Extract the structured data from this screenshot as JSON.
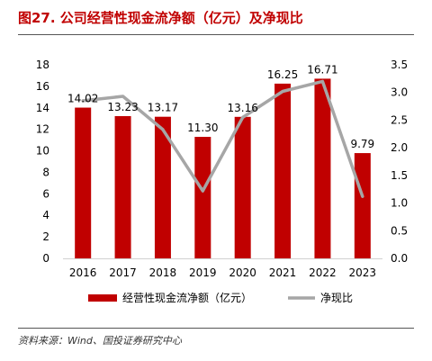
{
  "figure": {
    "title": "图27. 公司经营性现金流净额（亿元）及净现比",
    "source": "资料来源：Wind、国投证券研究中心"
  },
  "chart_data": {
    "type": "bar",
    "categories": [
      "2016",
      "2017",
      "2018",
      "2019",
      "2020",
      "2021",
      "2022",
      "2023"
    ],
    "series": [
      {
        "name": "经营性现金流净额（亿元）",
        "type": "bar",
        "axis": "left",
        "color": "#c00000",
        "values": [
          14.02,
          13.23,
          13.17,
          11.3,
          13.16,
          16.25,
          16.71,
          9.79
        ],
        "data_labels": [
          "14.02",
          "13.23",
          "13.17",
          "11.30",
          "13.16",
          "16.25",
          "16.71",
          "9.79"
        ]
      },
      {
        "name": "净现比",
        "type": "line",
        "axis": "right",
        "color": "#a6a6a6",
        "values": [
          2.85,
          2.93,
          2.33,
          1.22,
          2.55,
          3.02,
          3.2,
          1.12
        ]
      }
    ],
    "left_axis": {
      "ylim": [
        0,
        18
      ],
      "ticks": [
        "0",
        "2",
        "4",
        "6",
        "8",
        "10",
        "12",
        "14",
        "16",
        "18"
      ]
    },
    "right_axis": {
      "ylim": [
        0,
        3.5
      ],
      "ticks": [
        "0.0",
        "0.5",
        "1.0",
        "1.5",
        "2.0",
        "2.5",
        "3.0",
        "3.5"
      ]
    },
    "grid": false,
    "legend": "bottom-center"
  }
}
